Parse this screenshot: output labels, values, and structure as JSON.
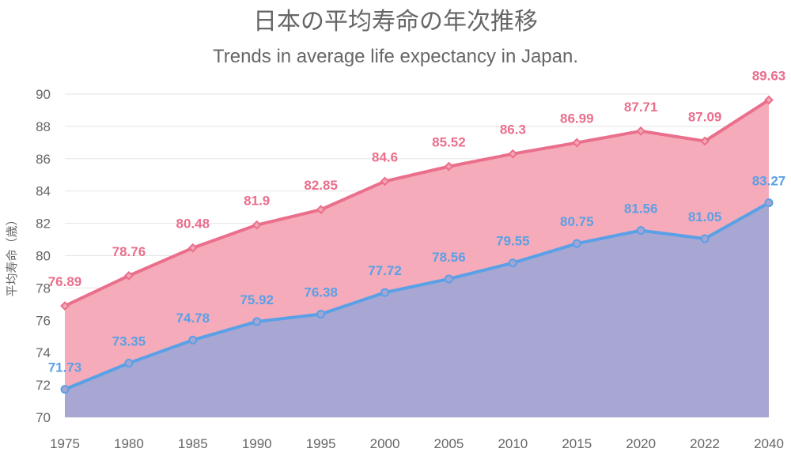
{
  "title": "日本の平均寿命の年次推移",
  "subtitle": "Trends in average life expectancy in Japan.",
  "colors": {
    "female_line": "#ea6f8c",
    "female_fill": "#f4a7b6",
    "male_line": "#5aa0e6",
    "male_fill": "#a3a6d4",
    "text": "#666666",
    "grid": "#e5e5e5"
  },
  "chart_data": {
    "type": "area",
    "title": "日本の平均寿命の年次推移",
    "subtitle": "Trends in average life expectancy in Japan.",
    "xlabel": "",
    "ylabel": "平均寿命（歳）",
    "ylim": [
      70,
      90
    ],
    "yticks": [
      70,
      72,
      74,
      76,
      78,
      80,
      82,
      84,
      86,
      88,
      90
    ],
    "grid": true,
    "categories": [
      "1975",
      "1980",
      "1985",
      "1990",
      "1995",
      "2000",
      "2005",
      "2010",
      "2015",
      "2020",
      "2022",
      "2040"
    ],
    "series": [
      {
        "key": "female",
        "marker": "diamond",
        "values": [
          76.89,
          78.76,
          80.48,
          81.9,
          82.85,
          84.6,
          85.52,
          86.3,
          86.99,
          87.71,
          87.09,
          89.63
        ]
      },
      {
        "key": "male",
        "marker": "circle",
        "values": [
          71.73,
          73.35,
          74.78,
          75.92,
          76.38,
          77.72,
          78.56,
          79.55,
          80.75,
          81.56,
          81.05,
          83.27
        ]
      }
    ]
  }
}
